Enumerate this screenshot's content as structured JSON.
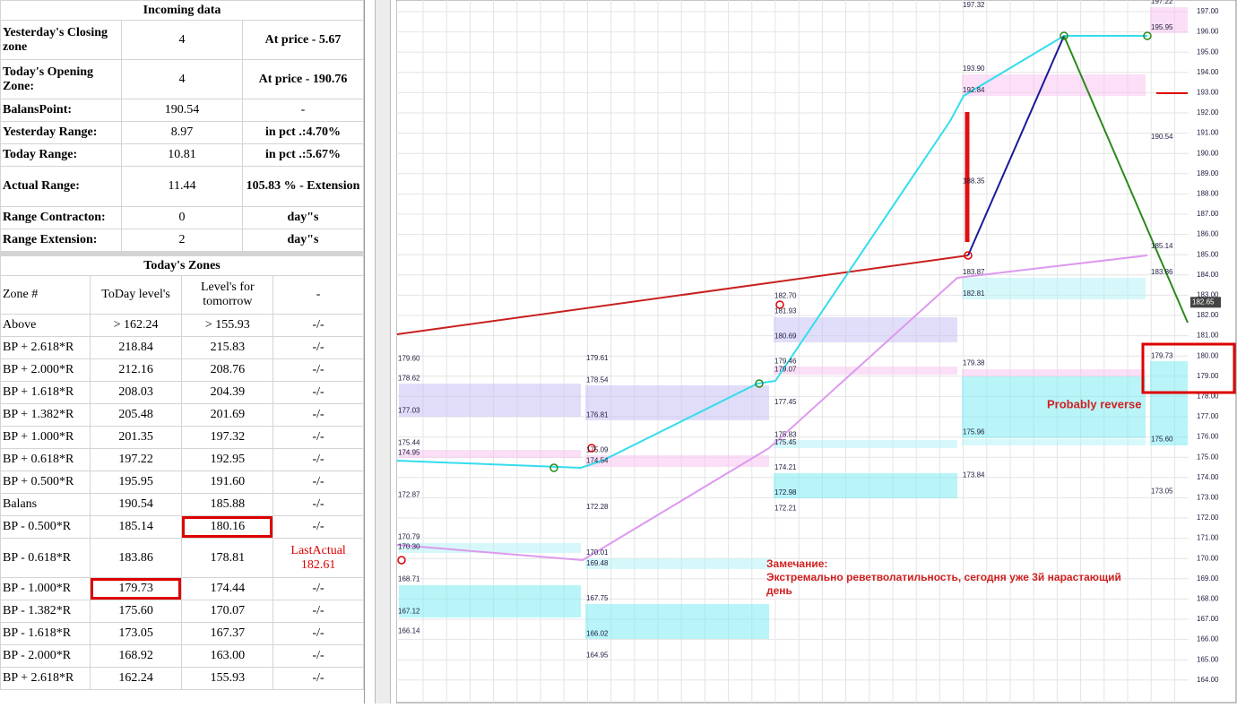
{
  "incoming": {
    "title": "Incoming data",
    "rows": [
      [
        "Yesterday's Closing zone",
        "4",
        "At price - 5.67"
      ],
      [
        "Today's Opening Zone:",
        "4",
        "At price - 190.76"
      ],
      [
        "BalansPoint:",
        "190.54",
        "-"
      ],
      [
        "Yesterday Range:",
        "8.97",
        "in pct .:4.70%"
      ],
      [
        "Today Range:",
        "10.81",
        "in pct .:5.67%"
      ],
      [
        "Actual Range:",
        "11.44",
        "105.83 % - Extension"
      ],
      [
        "Range Contracton:",
        "0",
        "day\"s"
      ],
      [
        "Range Extension:",
        "2",
        "day\"s"
      ]
    ]
  },
  "zones": {
    "title": "Today's Zones",
    "header": [
      "Zone #",
      "ToDay level's",
      "Level's for tomorrow",
      "-"
    ],
    "rows": [
      [
        "Above",
        "> 162.24",
        "> 155.93",
        "-/-"
      ],
      [
        "BP + 2.618*R",
        "218.84",
        "215.83",
        "-/-"
      ],
      [
        "BP + 2.000*R",
        "212.16",
        "208.76",
        "-/-"
      ],
      [
        "BP + 1.618*R",
        "208.03",
        "204.39",
        "-/-"
      ],
      [
        "BP + 1.382*R",
        "205.48",
        "201.69",
        "-/-"
      ],
      [
        "BP + 1.000*R",
        "201.35",
        "197.32",
        "-/-"
      ],
      [
        "BP + 0.618*R",
        "197.22",
        "192.95",
        "-/-"
      ],
      [
        "BP + 0.500*R",
        "195.95",
        "191.60",
        "-/-"
      ],
      [
        "Balans",
        "190.54",
        "185.88",
        "-/-"
      ],
      [
        "BP - 0.500*R",
        "185.14",
        "180.16",
        "-/-"
      ],
      [
        "BP - 0.618*R",
        "183.86",
        "178.81",
        "LastActual 182.61"
      ],
      [
        "BP - 1.000*R",
        "179.73",
        "174.44",
        "-/-"
      ],
      [
        "BP - 1.382*R",
        "175.60",
        "170.07",
        "-/-"
      ],
      [
        "BP - 1.618*R",
        "173.05",
        "167.37",
        "-/-"
      ],
      [
        "BP - 2.000*R",
        "168.92",
        "163.00",
        "-/-"
      ],
      [
        "BP + 2.618*R",
        "162.24",
        "155.93",
        "-/-"
      ]
    ]
  },
  "chart": {
    "price_axis": [
      "197.00",
      "196.00",
      "195.00",
      "194.00",
      "193.00",
      "192.00",
      "191.00",
      "190.00",
      "189.00",
      "188.00",
      "187.00",
      "186.00",
      "185.00",
      "184.00",
      "183.00",
      "182.00",
      "181.00",
      "180.00",
      "179.00",
      "178.00",
      "177.00",
      "176.00",
      "175.00",
      "174.00",
      "173.00",
      "172.00",
      "171.00",
      "170.00",
      "169.00",
      "168.00",
      "167.00",
      "166.00",
      "165.00",
      "164.00"
    ],
    "last_price": "182.65",
    "day_labels": [
      [
        "179.60",
        "178.62",
        "177.03",
        "175.44",
        "174.95",
        "172.87",
        "170.79",
        "170.30",
        "168.71",
        "167.12",
        "166.14"
      ],
      [
        "179.61",
        "178.54",
        "176.81",
        "175.09",
        "174.54",
        "172.28",
        "170.01",
        "169.48",
        "167.75",
        "166.02",
        "164.95"
      ],
      [
        "182.70",
        "181.93",
        "180.69",
        "179.46",
        "179.07",
        "177.45",
        "175.83",
        "175.45",
        "174.21",
        "172.98",
        "172.21"
      ],
      [
        "197.32",
        "193.90",
        "192.84",
        "188.35",
        "183.87",
        "182.81",
        "179.38",
        "175.96",
        "173.84"
      ],
      [
        "197.22",
        "195.95",
        "190.54",
        "185.14",
        "183.86",
        "179.73",
        "175.60",
        "173.05"
      ]
    ],
    "reverse_label": "Probably reverse",
    "note": [
      "Замечание:",
      "Экстремально реветволатильность, сегодня уже 3й нарастающий",
      "день"
    ]
  }
}
